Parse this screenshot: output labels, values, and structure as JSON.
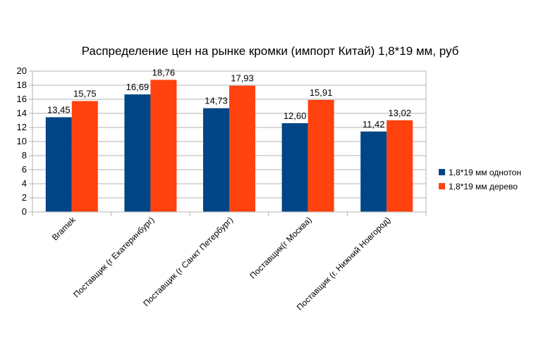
{
  "chart_data": {
    "type": "bar",
    "title": "Распределение цен на рынке кромки (импорт Китай) 1,8*19 мм, руб",
    "categories": [
      "Bramek",
      "Поставщик (г Екатеринбург)",
      "Поставщик (г Санкт Петербург)",
      "Поставщик(г Москва)",
      "Поставщик (г. Нижний Новгород)"
    ],
    "series": [
      {
        "name": "1,8*19 мм однотон",
        "color": "#004586",
        "values": [
          13.45,
          16.69,
          14.73,
          12.6,
          11.42
        ],
        "labels": [
          "13,45",
          "16,69",
          "14,73",
          "12,60",
          "11,42"
        ]
      },
      {
        "name": "1,8*19 мм дерево",
        "color": "#ff420e",
        "values": [
          15.75,
          18.76,
          17.93,
          15.91,
          13.02
        ],
        "labels": [
          "15,75",
          "18,76",
          "17,93",
          "15,91",
          "13,02"
        ]
      }
    ],
    "ylim": [
      0,
      20
    ],
    "yticks": [
      "0",
      "2",
      "4",
      "6",
      "8",
      "10",
      "12",
      "14",
      "16",
      "18",
      "20"
    ],
    "grid": true,
    "legend": "right"
  }
}
